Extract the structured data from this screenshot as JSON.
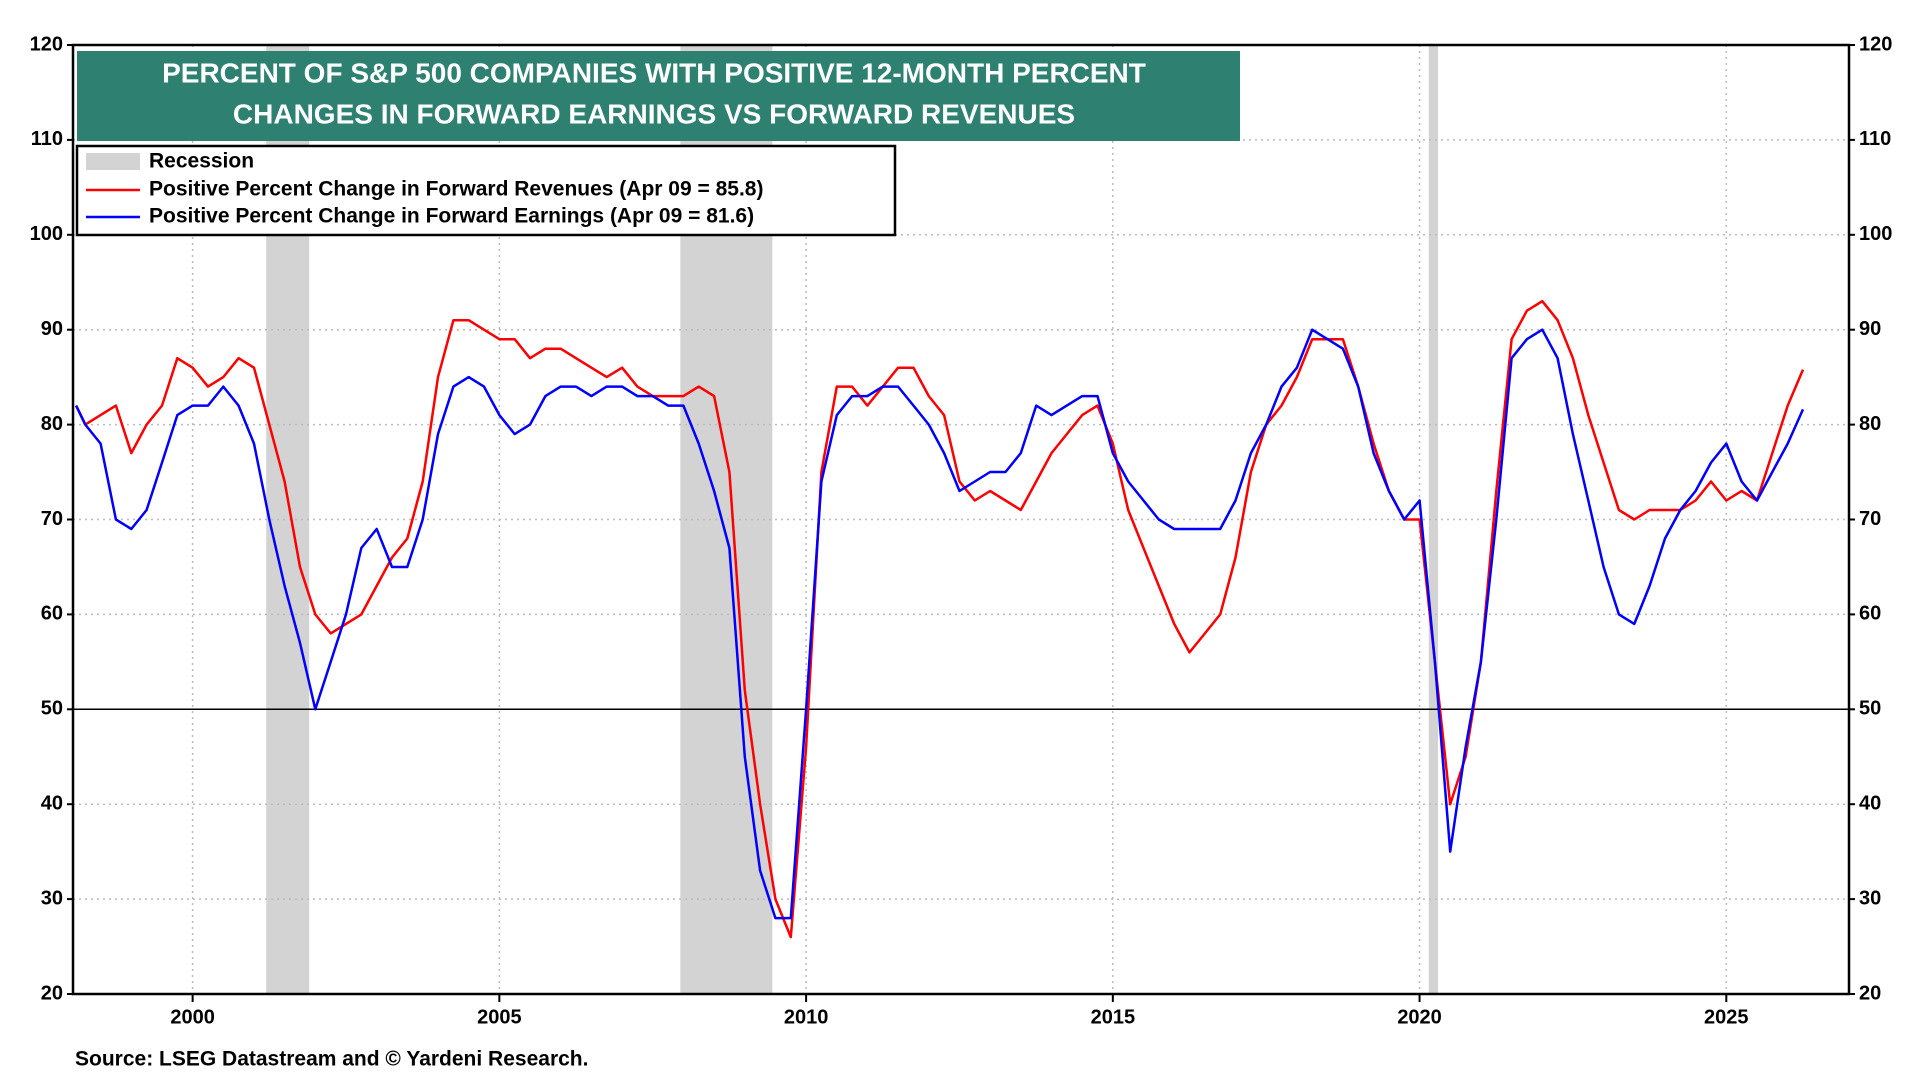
{
  "chart_data": {
    "type": "line",
    "title": [
      "PERCENT OF S&P 500 COMPANIES WITH POSITIVE 12-MONTH PERCENT",
      "CHANGES IN FORWARD EARNINGS VS FORWARD REVENUES"
    ],
    "source": "Source: LSEG Datastream and © Yardeni Research.",
    "x": [
      1998.1,
      1998.25,
      1998.5,
      1998.75,
      1999,
      1999.25,
      1999.5,
      1999.75,
      2000,
      2000.25,
      2000.5,
      2000.75,
      2001,
      2001.25,
      2001.5,
      2001.75,
      2002,
      2002.25,
      2002.5,
      2002.75,
      2003,
      2003.25,
      2003.5,
      2003.75,
      2004,
      2004.25,
      2004.5,
      2004.75,
      2005,
      2005.25,
      2005.5,
      2005.75,
      2006,
      2006.25,
      2006.5,
      2006.75,
      2007,
      2007.25,
      2007.5,
      2007.75,
      2008,
      2008.25,
      2008.5,
      2008.75,
      2009,
      2009.25,
      2009.5,
      2009.75,
      2010,
      2010.25,
      2010.5,
      2010.75,
      2011,
      2011.25,
      2011.5,
      2011.75,
      2012,
      2012.25,
      2012.5,
      2012.75,
      2013,
      2013.25,
      2013.5,
      2013.75,
      2014,
      2014.25,
      2014.5,
      2014.75,
      2015,
      2015.25,
      2015.5,
      2015.75,
      2016,
      2016.25,
      2016.5,
      2016.75,
      2017,
      2017.25,
      2017.5,
      2017.75,
      2018,
      2018.25,
      2018.5,
      2018.75,
      2019,
      2019.25,
      2019.5,
      2019.75,
      2020,
      2020.25,
      2020.5,
      2020.75,
      2021,
      2021.25,
      2021.5,
      2021.75,
      2022,
      2022.25,
      2022.5,
      2022.75,
      2023,
      2023.25,
      2023.5,
      2023.75,
      2024,
      2024.25,
      2024.5,
      2024.75,
      2025,
      2025.25,
      2025.5,
      2025.75,
      2026,
      2026.25
    ],
    "series": [
      {
        "name": "Positive Percent Change in Forward Revenues (Apr 09 = 85.8)",
        "color": "#ff0000",
        "values": [
          82,
          80,
          81,
          82,
          77,
          80,
          82,
          87,
          86,
          84,
          85,
          87,
          86,
          80,
          74,
          65,
          60,
          58,
          59,
          60,
          63,
          66,
          68,
          74,
          85,
          91,
          91,
          90,
          89,
          89,
          87,
          88,
          88,
          87,
          86,
          85,
          86,
          84,
          83,
          83,
          83,
          84,
          83,
          75,
          52,
          40,
          30,
          26,
          46,
          75,
          84,
          84,
          82,
          84,
          86,
          86,
          83,
          81,
          74,
          72,
          73,
          72,
          71,
          74,
          77,
          79,
          81,
          82,
          78,
          71,
          67,
          63,
          59,
          56,
          58,
          60,
          66,
          75,
          80,
          82,
          85,
          89,
          89,
          89,
          84,
          78,
          73,
          70,
          70,
          55,
          40,
          45,
          55,
          73,
          89,
          92,
          93,
          91,
          87,
          81,
          76,
          71,
          70,
          71,
          71,
          71,
          72,
          74,
          72,
          73,
          72,
          77,
          82,
          85.8
        ]
      },
      {
        "name": "Positive Percent Change in Forward Earnings (Apr 09 = 81.6)",
        "color": "#0000ff",
        "values": [
          82,
          80,
          78,
          70,
          69,
          71,
          76,
          81,
          82,
          82,
          84,
          82,
          78,
          70,
          63,
          57,
          50,
          55,
          60,
          67,
          69,
          65,
          65,
          70,
          79,
          84,
          85,
          84,
          81,
          79,
          80,
          83,
          84,
          84,
          83,
          84,
          84,
          83,
          83,
          82,
          82,
          78,
          73,
          67,
          45,
          33,
          28,
          28,
          50,
          74,
          81,
          83,
          83,
          84,
          84,
          82,
          80,
          77,
          73,
          74,
          75,
          75,
          77,
          82,
          81,
          82,
          83,
          83,
          77,
          74,
          72,
          70,
          69,
          69,
          69,
          69,
          72,
          77,
          80,
          84,
          86,
          90,
          89,
          88,
          84,
          77,
          73,
          70,
          72,
          55,
          35,
          46,
          55,
          70,
          87,
          89,
          90,
          87,
          79,
          72,
          65,
          60,
          59,
          63,
          68,
          71,
          73,
          76,
          78,
          74,
          72,
          75,
          78,
          81.6
        ]
      }
    ],
    "recession": {
      "name": "Recession",
      "color": "#d3d3d3",
      "periods": [
        [
          2001.2,
          2001.9
        ],
        [
          2007.95,
          2009.45
        ],
        [
          2020.15,
          2020.3
        ]
      ]
    },
    "reference_line": 50,
    "xlim": [
      1998.05,
      2027.0
    ],
    "xticks": [
      2000,
      2005,
      2010,
      2015,
      2020,
      2025
    ],
    "ylim": [
      20,
      120
    ],
    "yticks": [
      20,
      30,
      40,
      50,
      60,
      70,
      80,
      90,
      100,
      110,
      120
    ],
    "grid": true
  }
}
